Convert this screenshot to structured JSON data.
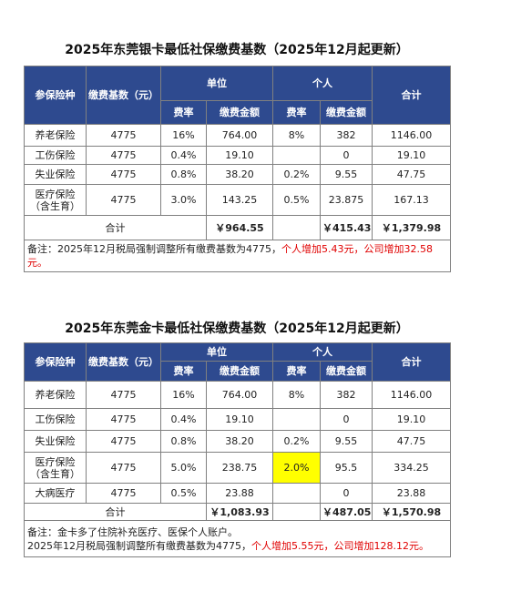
{
  "silver": {
    "title": "2025年东莞银卡最低社保缴费基数（2025年12月起更新）",
    "headers": {
      "type": "参保险种",
      "base": "缴费基数（元）",
      "company": "单位",
      "personal": "个人",
      "total": "合计",
      "rate": "费率",
      "amount": "缴费金额"
    },
    "rows": [
      {
        "name": "养老保险",
        "base": "4775",
        "c_rate": "16%",
        "c_amt": "764.00",
        "p_rate": "8%",
        "p_amt": "382",
        "total": "1146.00"
      },
      {
        "name": "工伤保险",
        "base": "4775",
        "c_rate": "0.4%",
        "c_amt": "19.10",
        "p_rate": "",
        "p_amt": "0",
        "total": "19.10"
      },
      {
        "name": "失业保险",
        "base": "4775",
        "c_rate": "0.8%",
        "c_amt": "38.20",
        "p_rate": "0.2%",
        "p_amt": "9.55",
        "total": "47.75"
      },
      {
        "name": "医疗保险（含生育）",
        "base": "4775",
        "c_rate": "3.0%",
        "c_amt": "143.25",
        "p_rate": "0.5%",
        "p_amt": "23.875",
        "total": "167.13"
      }
    ],
    "sum": {
      "label": "合计",
      "company": "￥964.55",
      "personal": "￥415.43",
      "total": "￥1,379.98"
    },
    "note": {
      "prefix": "备注：",
      "text": "2025年12月税局强制调整所有缴费基数为4775，",
      "red": "个人增加5.43元，公司增加32.58元。"
    }
  },
  "gold": {
    "title": "2025年东莞金卡最低社保缴费基数（2025年12月起更新）",
    "headers": {
      "type": "参保险种",
      "base": "缴费基数（元）",
      "company": "单位",
      "personal": "个人",
      "total": "合计",
      "rate": "费率",
      "amount": "缴费金额"
    },
    "rows": [
      {
        "name": "养老保险",
        "base": "4775",
        "c_rate": "16%",
        "c_amt": "764.00",
        "p_rate": "8%",
        "p_amt": "382",
        "total": "1146.00"
      },
      {
        "name": "工伤保险",
        "base": "4775",
        "c_rate": "0.4%",
        "c_amt": "19.10",
        "p_rate": "",
        "p_amt": "0",
        "total": "19.10"
      },
      {
        "name": "失业保险",
        "base": "4775",
        "c_rate": "0.8%",
        "c_amt": "38.20",
        "p_rate": "0.2%",
        "p_amt": "9.55",
        "total": "47.75"
      },
      {
        "name": "医疗保险（含生育）",
        "base": "4775",
        "c_rate": "5.0%",
        "c_amt": "238.75",
        "p_rate": "2.0%",
        "p_amt": "95.5",
        "total": "334.25"
      },
      {
        "name": "大病医疗",
        "base": "4775",
        "c_rate": "0.5%",
        "c_amt": "23.88",
        "p_rate": "",
        "p_amt": "0",
        "total": "23.88"
      }
    ],
    "sum": {
      "label": "合计",
      "company": "￥1,083.93",
      "personal": "￥487.05",
      "total": "￥1,570.98"
    },
    "note": {
      "prefix": "备注：",
      "line1": "金卡多了住院补充医疗、医保个人账户。",
      "line2": "2025年12月税局强制调整所有缴费基数为4775，",
      "red": "个人增加5.55元，公司增加128.12元。"
    }
  },
  "colors": {
    "header_bg": "#2e4a8f",
    "highlight": "#ffff00",
    "note_red": "#e00000"
  }
}
